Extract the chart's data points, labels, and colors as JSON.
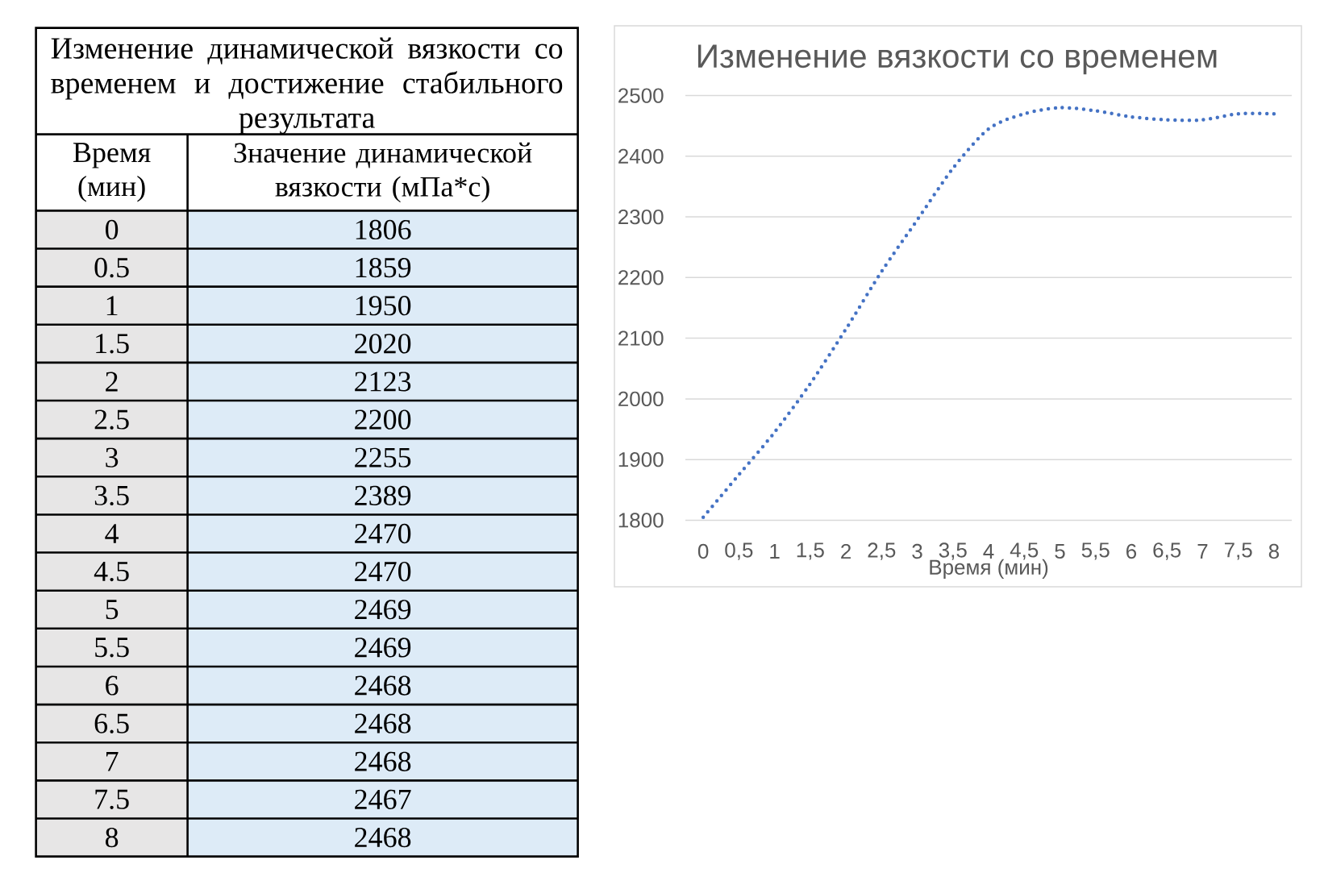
{
  "chart_data": [
    {
      "type": "heatmap",
      "title": "Изменение динамической вязкости со временем и достижение стабильного результата",
      "ylabel": "Время (мин)",
      "categories": [
        "Значение динамической вязкости (мПа*с)"
      ],
      "y_categories": [
        "0",
        "0.5",
        "1",
        "1.5",
        "2",
        "2.5",
        "3",
        "3.5",
        "4",
        "4.5",
        "5",
        "5.5",
        "6",
        "6.5",
        "7",
        "7.5",
        "8"
      ],
      "cells": [
        [
          1806
        ],
        [
          1859
        ],
        [
          1950
        ],
        [
          2020
        ],
        [
          2123
        ],
        [
          2200
        ],
        [
          2255
        ],
        [
          2389
        ],
        [
          2470
        ],
        [
          2470
        ],
        [
          2469
        ],
        [
          2469
        ],
        [
          2468
        ],
        [
          2468
        ],
        [
          2468
        ],
        [
          2467
        ],
        [
          2468
        ]
      ],
      "data_labels": true,
      "color": "#ddebf7"
    },
    {
      "type": "line",
      "title": "Изменение вязкости со временем",
      "xlabel": "Время (мин)",
      "categories": [
        "0",
        "0,5",
        "1",
        "1,5",
        "2",
        "2,5",
        "3",
        "3,5",
        "4",
        "4,5",
        "5",
        "5,5",
        "6",
        "6,5",
        "7",
        "7,5",
        "8"
      ],
      "values": [
        1805,
        1875,
        1945,
        2025,
        2115,
        2210,
        2295,
        2380,
        2445,
        2470,
        2480,
        2475,
        2465,
        2460,
        2460,
        2470,
        2470
      ],
      "color": "#4472c4",
      "line_style": "dotted",
      "ylim": [
        1800,
        2500
      ],
      "yticks": [
        1800,
        1900,
        2000,
        2100,
        2200,
        2300,
        2400,
        2500
      ],
      "grid": "y"
    }
  ]
}
